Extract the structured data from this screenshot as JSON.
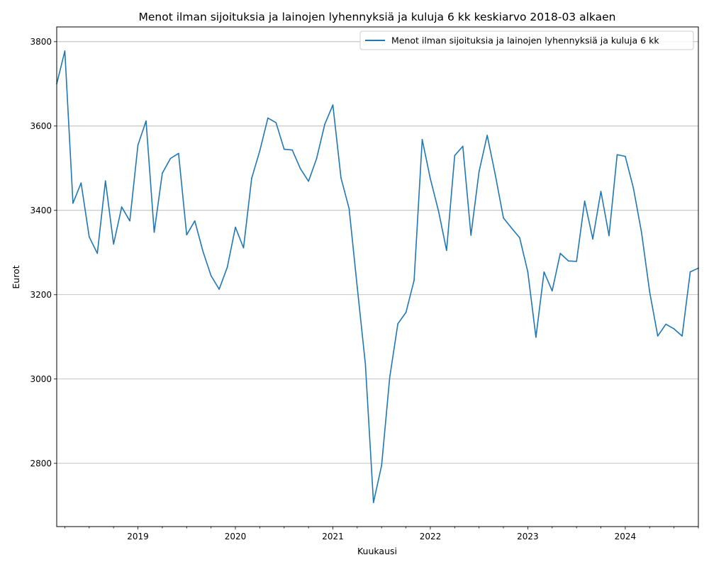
{
  "chart_data": {
    "type": "line",
    "title": "Menot ilman sijoituksia ja lainojen lyhennyksiä ja kuluja 6 kk keskiarvo 2018-03 alkaen",
    "xlabel": "Kuukausi",
    "ylabel": "Eurot",
    "legend_position": "top-right",
    "grid": "horizontal",
    "color": "#1f77b4",
    "x_start": "2018-03",
    "x_end": "2024-10",
    "ylim": [
      2650,
      3835
    ],
    "yticks": [
      2800,
      3000,
      3200,
      3400,
      3600,
      3800
    ],
    "xtick_labels": [
      "2019",
      "2020",
      "2021",
      "2022",
      "2023",
      "2024"
    ],
    "series": [
      {
        "name": "Menot ilman sijoituksia ja lainojen lyhennyksiä ja kuluja 6 kk",
        "points": [
          [
            "2018-03",
            3700
          ],
          [
            "2018-04",
            3778
          ],
          [
            "2018-05",
            3417
          ],
          [
            "2018-06",
            3465
          ],
          [
            "2018-07",
            3337
          ],
          [
            "2018-08",
            3298
          ],
          [
            "2018-09",
            3470
          ],
          [
            "2018-10",
            3320
          ],
          [
            "2018-11",
            3408
          ],
          [
            "2018-12",
            3375
          ],
          [
            "2019-01",
            3555
          ],
          [
            "2019-02",
            3612
          ],
          [
            "2019-03",
            3348
          ],
          [
            "2019-04",
            3488
          ],
          [
            "2019-05",
            3523
          ],
          [
            "2019-06",
            3535
          ],
          [
            "2019-07",
            3342
          ],
          [
            "2019-08",
            3375
          ],
          [
            "2019-09",
            3303
          ],
          [
            "2019-10",
            3245
          ],
          [
            "2019-11",
            3213
          ],
          [
            "2019-12",
            3265
          ],
          [
            "2020-01",
            3360
          ],
          [
            "2020-02",
            3311
          ],
          [
            "2020-03",
            3476
          ],
          [
            "2020-04",
            3541
          ],
          [
            "2020-05",
            3619
          ],
          [
            "2020-06",
            3608
          ],
          [
            "2020-07",
            3545
          ],
          [
            "2020-08",
            3543
          ],
          [
            "2020-09",
            3499
          ],
          [
            "2020-10",
            3469
          ],
          [
            "2020-11",
            3523
          ],
          [
            "2020-12",
            3604
          ],
          [
            "2021-01",
            3650
          ],
          [
            "2021-02",
            3477
          ],
          [
            "2021-03",
            3404
          ],
          [
            "2021-04",
            3218
          ],
          [
            "2021-05",
            3036
          ],
          [
            "2021-06",
            2707
          ],
          [
            "2021-07",
            2795
          ],
          [
            "2021-08",
            3004
          ],
          [
            "2021-09",
            3131
          ],
          [
            "2021-10",
            3158
          ],
          [
            "2021-11",
            3234
          ],
          [
            "2021-12",
            3568
          ],
          [
            "2022-01",
            3475
          ],
          [
            "2022-02",
            3399
          ],
          [
            "2022-03",
            3305
          ],
          [
            "2022-04",
            3530
          ],
          [
            "2022-05",
            3552
          ],
          [
            "2022-06",
            3341
          ],
          [
            "2022-07",
            3492
          ],
          [
            "2022-08",
            3578
          ],
          [
            "2022-09",
            3484
          ],
          [
            "2022-10",
            3382
          ],
          [
            "2022-11",
            3358
          ],
          [
            "2022-12",
            3335
          ],
          [
            "2023-01",
            3254
          ],
          [
            "2023-02",
            3099
          ],
          [
            "2023-03",
            3254
          ],
          [
            "2023-04",
            3209
          ],
          [
            "2023-05",
            3298
          ],
          [
            "2023-06",
            3280
          ],
          [
            "2023-07",
            3279
          ],
          [
            "2023-08",
            3422
          ],
          [
            "2023-09",
            3332
          ],
          [
            "2023-10",
            3445
          ],
          [
            "2023-11",
            3340
          ],
          [
            "2023-12",
            3532
          ],
          [
            "2024-01",
            3528
          ],
          [
            "2024-02",
            3453
          ],
          [
            "2024-03",
            3348
          ],
          [
            "2024-04",
            3207
          ],
          [
            "2024-05",
            3102
          ],
          [
            "2024-06",
            3130
          ],
          [
            "2024-07",
            3119
          ],
          [
            "2024-08",
            3102
          ],
          [
            "2024-09",
            3254
          ],
          [
            "2024-10",
            3263
          ]
        ]
      }
    ]
  }
}
